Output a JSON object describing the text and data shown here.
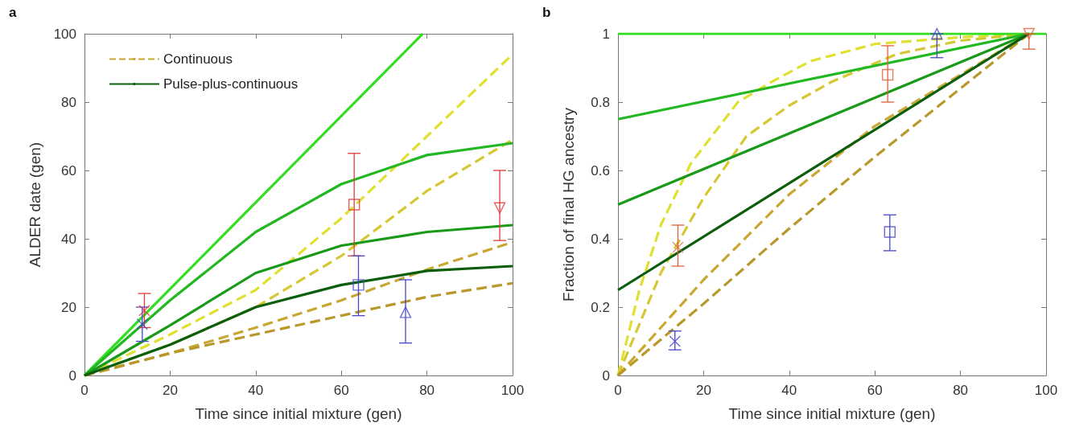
{
  "chart_data": [
    {
      "type": "line",
      "title": "a",
      "xlabel": "Time since initial mixture (gen)",
      "ylabel": "ALDER date (gen)",
      "xlim": [
        0,
        100
      ],
      "ylim": [
        0,
        100
      ],
      "xticks": [
        0,
        20,
        40,
        60,
        80,
        100
      ],
      "yticks": [
        0,
        20,
        40,
        60,
        80,
        100
      ],
      "legend": "top left",
      "series": [
        {
          "color": "#e0e030",
          "line_style": "dashed",
          "x": [
            0,
            20,
            40,
            60,
            80,
            100
          ],
          "values": [
            0,
            12,
            25,
            46,
            70,
            94
          ]
        },
        {
          "color": "#d6c834",
          "line_style": "dashed",
          "x": [
            0,
            20,
            40,
            60,
            80,
            100
          ],
          "values": [
            0,
            9,
            20,
            35,
            54,
            69
          ]
        },
        {
          "name": "Continuous",
          "color": "#c8a832",
          "line_style": "dashed",
          "x": [
            0,
            20,
            40,
            60,
            80,
            100
          ],
          "values": [
            0,
            6.5,
            14,
            22,
            31,
            39
          ]
        },
        {
          "color": "#b8982a",
          "line_style": "dashed",
          "x": [
            0,
            20,
            40,
            60,
            80,
            100
          ],
          "values": [
            0,
            6.5,
            12,
            17.5,
            23,
            27
          ]
        },
        {
          "color": "#33dd22",
          "line_style": "solid",
          "x": [
            0,
            79
          ],
          "values": [
            0,
            100
          ]
        },
        {
          "color": "#22b822",
          "line_style": "solid",
          "x": [
            0,
            20,
            40,
            60,
            80,
            100
          ],
          "values": [
            0,
            22,
            42,
            56,
            64.5,
            68
          ]
        },
        {
          "color": "#189a18",
          "line_style": "solid",
          "x": [
            0,
            20,
            40,
            60,
            80,
            100
          ],
          "values": [
            0,
            14.7,
            30,
            38,
            42,
            44
          ]
        },
        {
          "name": "Pulse-plus-continuous",
          "color": "#0b5e0b",
          "line_style": "solid",
          "x": [
            0,
            20,
            40,
            60,
            80,
            100
          ],
          "values": [
            0,
            9,
            20,
            26.5,
            30.6,
            32
          ]
        },
        {
          "type": "scatter",
          "color": "#e03a3a",
          "marker": "cross",
          "x": [
            14
          ],
          "values": [
            19
          ],
          "errors": [
            [
              14,
              24
            ]
          ]
        },
        {
          "type": "scatter",
          "color": "#4646c8",
          "marker": "cross",
          "x": [
            13.5
          ],
          "values": [
            15
          ],
          "errors": [
            [
              10,
              20
            ]
          ]
        },
        {
          "type": "scatter",
          "color": "#e03a3a",
          "marker": "square",
          "x": [
            63
          ],
          "values": [
            50
          ],
          "errors": [
            [
              35,
              65
            ]
          ]
        },
        {
          "type": "scatter",
          "color": "#4646c8",
          "marker": "square",
          "x": [
            64
          ],
          "values": [
            26.5
          ],
          "errors": [
            [
              17.5,
              35
            ]
          ]
        },
        {
          "type": "scatter",
          "color": "#4646c8",
          "marker": "triangle",
          "x": [
            75
          ],
          "values": [
            18.5
          ],
          "errors": [
            [
              9.5,
              28
            ]
          ]
        },
        {
          "type": "scatter",
          "color": "#e03a3a",
          "marker": "triangle-down",
          "x": [
            97
          ],
          "values": [
            49
          ],
          "errors": [
            [
              39.5,
              60
            ]
          ]
        }
      ]
    },
    {
      "type": "line",
      "title": "b",
      "xlabel": "Time since initial mixture (gen)",
      "ylabel": "Fraction of final HG ancestry",
      "xlim": [
        0,
        100
      ],
      "ylim": [
        0,
        1
      ],
      "xticks": [
        0,
        20,
        40,
        60,
        80,
        100
      ],
      "yticks": [
        0,
        0.2,
        0.4,
        0.6,
        0.8,
        1
      ],
      "series": [
        {
          "color": "#e0e030",
          "line_style": "dashed",
          "x": [
            0,
            5,
            10,
            17,
            28,
            36,
            45,
            60,
            80,
            96
          ],
          "values": [
            0,
            0.25,
            0.44,
            0.62,
            0.8,
            0.86,
            0.92,
            0.97,
            0.99,
            1
          ]
        },
        {
          "color": "#d6c834",
          "line_style": "dashed",
          "x": [
            0,
            10,
            20,
            30,
            40,
            50,
            65,
            80,
            96
          ],
          "values": [
            0,
            0.3,
            0.52,
            0.7,
            0.79,
            0.86,
            0.94,
            0.98,
            1
          ]
        },
        {
          "color": "#c8a832",
          "line_style": "dashed",
          "x": [
            0,
            20,
            40,
            60,
            80,
            96
          ],
          "values": [
            0,
            0.28,
            0.53,
            0.73,
            0.88,
            1
          ]
        },
        {
          "color": "#b8982a",
          "line_style": "dashed",
          "x": [
            0,
            20,
            40,
            60,
            80,
            96
          ],
          "values": [
            0,
            0.21,
            0.43,
            0.64,
            0.84,
            1
          ]
        },
        {
          "color": "#33dd22",
          "line_style": "solid",
          "x": [
            0,
            100
          ],
          "values": [
            1,
            1
          ]
        },
        {
          "color": "#22b822",
          "line_style": "solid",
          "x": [
            0,
            96
          ],
          "values": [
            0.75,
            1
          ]
        },
        {
          "color": "#189a18",
          "line_style": "solid",
          "x": [
            0,
            96
          ],
          "values": [
            0.5,
            1
          ]
        },
        {
          "color": "#0b5e0b",
          "line_style": "solid",
          "x": [
            0,
            96
          ],
          "values": [
            0.25,
            1
          ]
        },
        {
          "type": "scatter",
          "color": "#4646c8",
          "marker": "cross",
          "x": [
            13.3
          ],
          "values": [
            0.1
          ],
          "errors": [
            [
              0.075,
              0.13
            ]
          ]
        },
        {
          "type": "scatter",
          "color": "#e0603a",
          "marker": "cross",
          "x": [
            14
          ],
          "values": [
            0.375
          ],
          "errors": [
            [
              0.32,
              0.44
            ]
          ]
        },
        {
          "type": "scatter",
          "color": "#e0603a",
          "marker": "square",
          "x": [
            63
          ],
          "values": [
            0.88
          ],
          "errors": [
            [
              0.8,
              0.965
            ]
          ]
        },
        {
          "type": "scatter",
          "color": "#4646c8",
          "marker": "square",
          "x": [
            63.5
          ],
          "values": [
            0.42
          ],
          "errors": [
            [
              0.365,
              0.47
            ]
          ]
        },
        {
          "type": "scatter",
          "color": "#4646c8",
          "marker": "triangle",
          "x": [
            74.5
          ],
          "values": [
            1
          ],
          "errors": [
            [
              0.93,
              1
            ]
          ]
        },
        {
          "type": "scatter",
          "color": "#e0603a",
          "marker": "triangle-down",
          "x": [
            96
          ],
          "values": [
            1
          ],
          "errors": [
            [
              0.955,
              1
            ]
          ]
        }
      ]
    }
  ]
}
